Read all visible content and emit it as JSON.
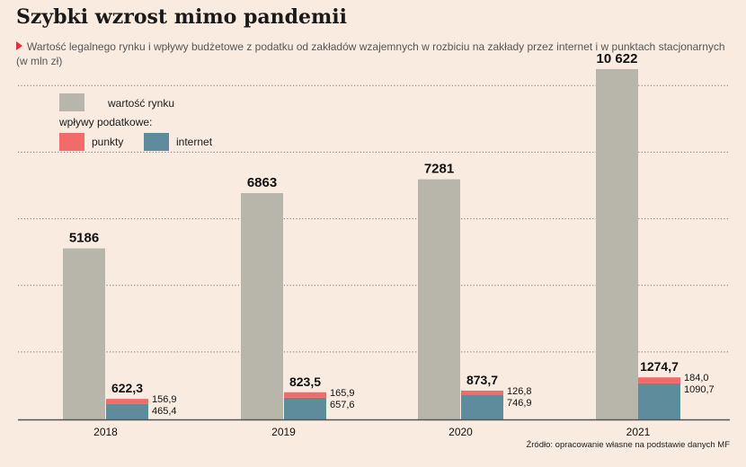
{
  "title": "Szybki wzrost mimo pandemii",
  "subtitle_line1": "Wartość legalnego rynku i wpływy budżetowe z podatku od zakładów wzajemnych w rozbiciu na zakłady przez internet i w punktach stacjonarnych",
  "subtitle_line2": "(w mln zł)",
  "legend": {
    "market": "wartość rynku",
    "tax_header": "wpływy podatkowe:",
    "points": "punkty",
    "internet": "internet"
  },
  "source": "Źródło: opracowanie własne na podstawie danych MF",
  "colors": {
    "background": "#faebe0",
    "market": "#b8b6aa",
    "points": "#f26b6b",
    "internet": "#5f8c9c",
    "grid": "#777777",
    "axis": "#555555"
  },
  "chart_data": {
    "type": "bar",
    "categories": [
      "2018",
      "2019",
      "2020",
      "2021"
    ],
    "series": [
      {
        "name": "wartość rynku",
        "values": [
          5186,
          6863,
          7281,
          10622
        ],
        "labels": [
          "5186",
          "6863",
          "7281",
          "10 622"
        ]
      },
      {
        "name": "punkty",
        "values": [
          156.9,
          165.9,
          126.8,
          184.0
        ],
        "labels": [
          "156,9",
          "165,9",
          "126,8",
          "184,0"
        ]
      },
      {
        "name": "internet",
        "values": [
          465.4,
          657.6,
          746.9,
          1090.7
        ],
        "labels": [
          "465,4",
          "657,6",
          "746,9",
          "1090,7"
        ]
      }
    ],
    "tax_totals": {
      "values": [
        622.3,
        823.5,
        873.7,
        1274.7
      ],
      "labels": [
        "622,3",
        "823,5",
        "873,7",
        "1274,7"
      ]
    },
    "stacked_series": [
      "internet",
      "punkty"
    ],
    "ylim": [
      0,
      10622
    ],
    "grid": true,
    "legend_position": "top-left"
  }
}
